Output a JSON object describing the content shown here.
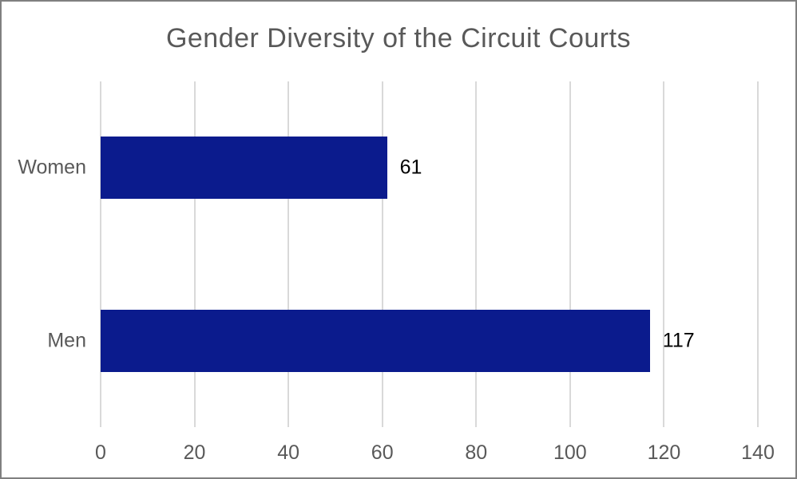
{
  "title": "Gender Diversity of the Circuit Courts",
  "colors": {
    "bar": "#0B1B8D",
    "title_text": "#595959",
    "axis_text": "#595959",
    "value_text": "#000000",
    "gridline": "#D9D9D9",
    "border": "#808080",
    "background": "#FFFFFF"
  },
  "chart_data": {
    "type": "bar",
    "orientation": "horizontal",
    "title": "Gender Diversity of the Circuit Courts",
    "categories": [
      "Women",
      "Men"
    ],
    "values": [
      61,
      117
    ],
    "data_labels": [
      "61",
      "117"
    ],
    "xlabel": "",
    "ylabel": "",
    "xlim": [
      0,
      140
    ],
    "x_ticks": [
      0,
      20,
      40,
      60,
      80,
      100,
      120,
      140
    ],
    "grid": true,
    "legend": "none"
  }
}
